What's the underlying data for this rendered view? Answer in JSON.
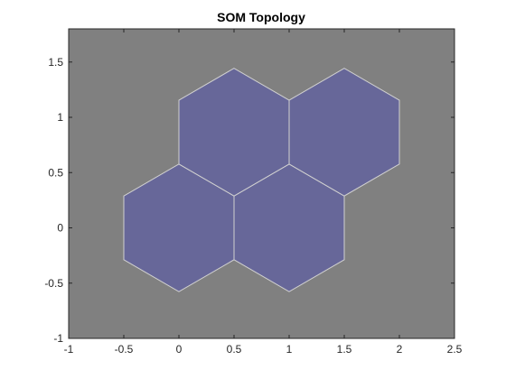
{
  "chart_data": {
    "type": "som",
    "title": "SOM Topology",
    "x": [
      0,
      1,
      0.5,
      1.5
    ],
    "y": [
      0,
      0,
      0.866,
      0.866
    ],
    "color": "#676799",
    "edge_color": "#d0d0d0",
    "background": "#808080",
    "xlim": [
      -1,
      2.5
    ],
    "ylim": [
      -1,
      1.8
    ],
    "xticks": [
      -1,
      -0.5,
      0,
      0.5,
      1,
      1.5,
      2,
      2.5
    ],
    "yticks": [
      -1,
      -0.5,
      0,
      0.5,
      1,
      1.5
    ]
  }
}
